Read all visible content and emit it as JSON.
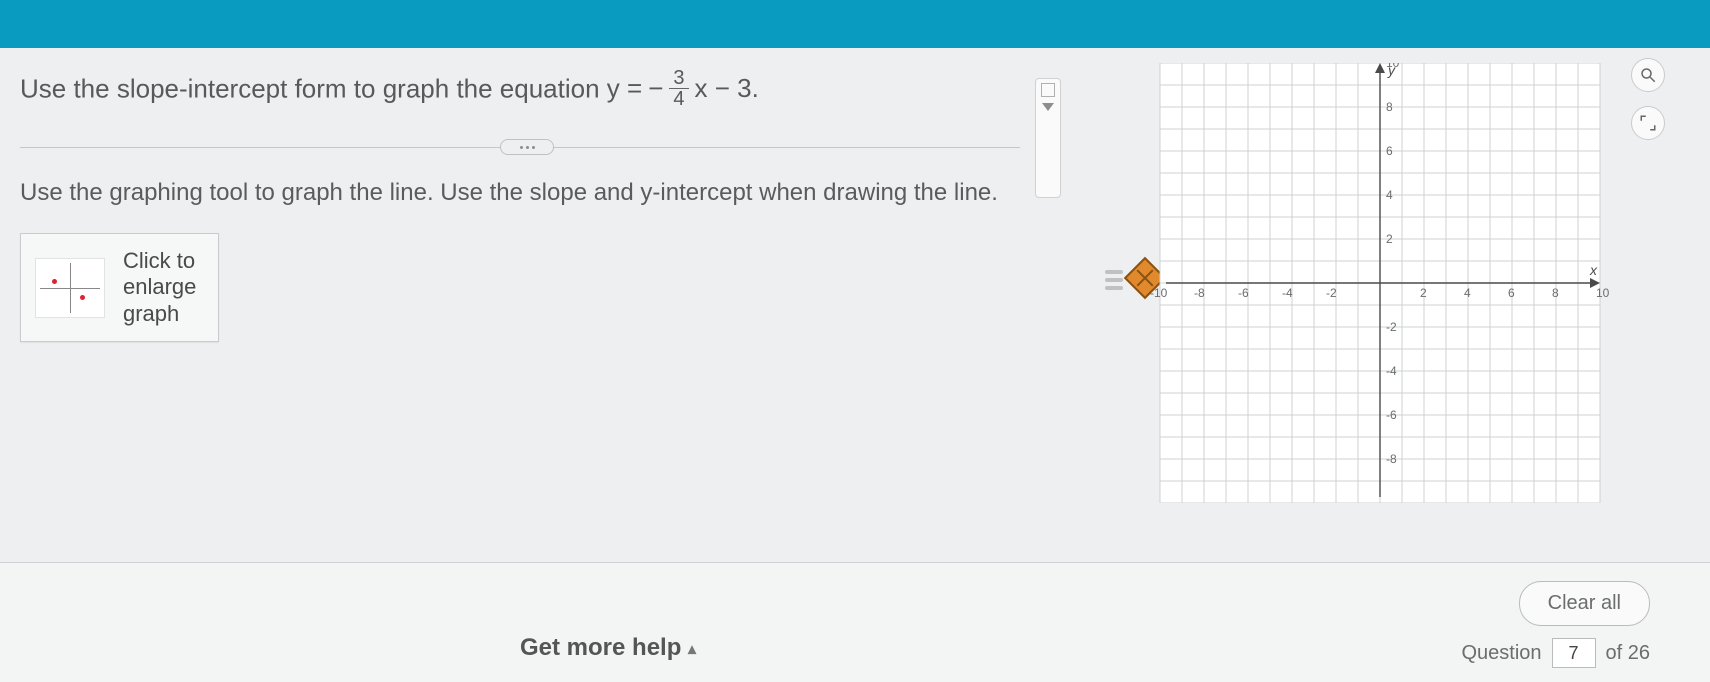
{
  "colors": {
    "top_bar": "#0a9bc1",
    "page_bg": "#eeeff0",
    "text": "#595959",
    "grid": "#cfd1d2",
    "axis": "#4a4a4a",
    "tool_accent": "#e08a2d"
  },
  "question": {
    "prompt_prefix": "Use the slope-intercept form to graph the equation ",
    "equation_lhs": "y = ",
    "equation_neg": "−",
    "equation_frac_num": "3",
    "equation_frac_den": "4",
    "equation_rhs": "x − 3.",
    "instruction": "Use the graphing tool to graph the line.  Use the slope and y-intercept when drawing the line.",
    "enlarge_label_1": "Click to",
    "enlarge_label_2": "enlarge",
    "enlarge_label_3": "graph"
  },
  "graph": {
    "x_axis_label": "x",
    "y_axis_label": "y",
    "xlim": [
      -10,
      10
    ],
    "ylim": [
      -10,
      10
    ],
    "tick_step": 2,
    "x_tick_labels": [
      "-10",
      "-8",
      "-6",
      "-4",
      "-2",
      "2",
      "4",
      "6",
      "8",
      "10"
    ],
    "y_tick_labels_pos": [
      "2",
      "4",
      "6",
      "8",
      "10"
    ],
    "y_tick_labels_neg": [
      "-2",
      "-4",
      "-6",
      "-8"
    ],
    "background": "#ffffff",
    "grid_color": "#cfd1d2",
    "axis_color": "#4a4a4a"
  },
  "footer": {
    "help_label": "Get more help",
    "clear_label": "Clear all",
    "question_word": "Question",
    "current_question": "7",
    "total_suffix": "of 26"
  }
}
